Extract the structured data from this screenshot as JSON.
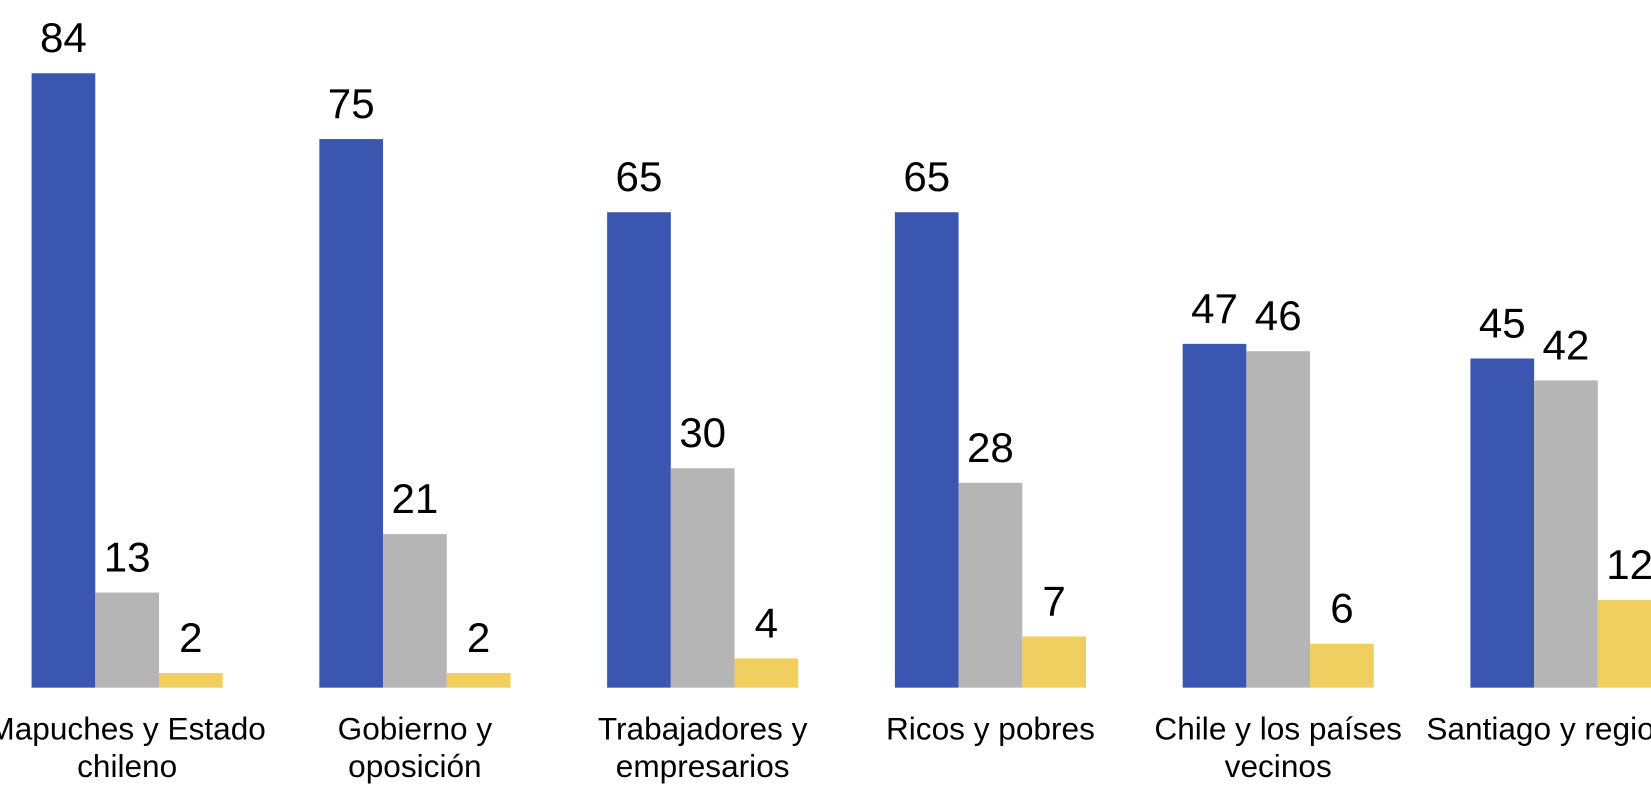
{
  "chart_data": {
    "type": "bar",
    "categories": [
      "Mapuches y Estado chileno",
      "Gobierno y oposición",
      "Trabajadores y empresarios",
      "Ricos y pobres",
      "Chile y los países vecinos",
      "Santiago y regiones"
    ],
    "series": [
      {
        "color": "#3a56b0",
        "values": [
          84,
          75,
          65,
          65,
          47,
          45
        ]
      },
      {
        "color": "#b5b5b5",
        "values": [
          13,
          21,
          30,
          28,
          46,
          42
        ]
      },
      {
        "color": "#f0cf60",
        "values": [
          2,
          2,
          4,
          7,
          6,
          12
        ]
      }
    ],
    "ylim": [
      0,
      94
    ]
  }
}
